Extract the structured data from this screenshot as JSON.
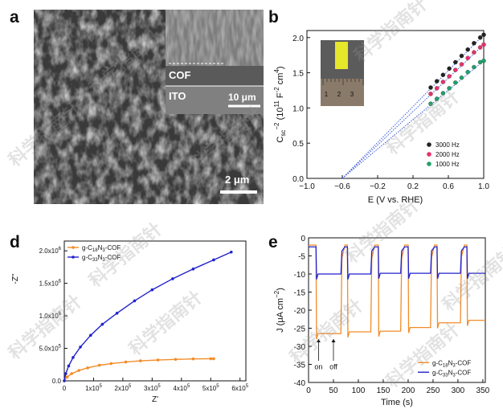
{
  "panels": {
    "a": {
      "letter": "a",
      "inset_label_cof": "COF",
      "inset_label_ito": "ITO",
      "inset_scale": "10 μm",
      "main_scale": "2 μm"
    },
    "b": {
      "letter": "b"
    },
    "d": {
      "letter": "d"
    },
    "e": {
      "letter": "e"
    }
  },
  "watermark_text": "科学指南针",
  "colors": {
    "orange": "#f28c28",
    "blue": "#2222cc",
    "black_dot": "#222222",
    "red_dot": "#e8316a",
    "green_dot": "#22a06b",
    "dotted_line": "#2a4bd7"
  },
  "chart_data": [
    {
      "panel": "b",
      "type": "scatter",
      "xlabel": "E (V vs. RHE)",
      "ylabel_main": "C",
      "ylabel_sub": "sc",
      "ylabel_sup": "−2",
      "ylabel_rest": " (10",
      "ylabel_sup2": "11",
      "ylabel_unit": " F",
      "ylabel_sup3": "-2",
      "ylabel_unit2": " cm",
      "ylabel_sup4": "4",
      "ylabel_end": ")",
      "xlim": [
        -1.0,
        1.0
      ],
      "ylim": [
        0.0,
        2.1
      ],
      "xticks": [
        -1.0,
        -0.6,
        -0.2,
        0.2,
        0.6,
        1.0
      ],
      "xtick_labels": [
        "−1.0",
        "−0.6",
        "−0.2",
        "0.2",
        "0.6",
        "1.0"
      ],
      "yticks": [
        0.0,
        0.5,
        1.0,
        1.5,
        2.0
      ],
      "ytick_labels": [
        "0.0",
        "0.5",
        "1.0",
        "1.5",
        "2.0"
      ],
      "intercept_x": -0.6,
      "legend_position": "bottom-right",
      "series": [
        {
          "name": "3000 Hz",
          "color": "#222222",
          "x": [
            0.4,
            0.47,
            0.54,
            0.61,
            0.68,
            0.75,
            0.82,
            0.89,
            0.96,
            1.0
          ],
          "y": [
            1.29,
            1.38,
            1.47,
            1.56,
            1.65,
            1.74,
            1.83,
            1.92,
            2.0,
            2.04
          ]
        },
        {
          "name": "2000 Hz",
          "color": "#e8316a",
          "x": [
            0.4,
            0.47,
            0.54,
            0.61,
            0.68,
            0.75,
            0.82,
            0.89,
            0.96,
            1.0
          ],
          "y": [
            1.2,
            1.28,
            1.37,
            1.45,
            1.54,
            1.62,
            1.71,
            1.79,
            1.86,
            1.9
          ]
        },
        {
          "name": "1000 Hz",
          "color": "#22a06b",
          "x": [
            0.4,
            0.47,
            0.54,
            0.61,
            0.68,
            0.75,
            0.82,
            0.89,
            0.96,
            1.0
          ],
          "y": [
            1.06,
            1.13,
            1.21,
            1.28,
            1.36,
            1.43,
            1.51,
            1.58,
            1.65,
            1.67
          ]
        }
      ],
      "inset_ruler_labels": [
        "1",
        "2",
        "3"
      ]
    },
    {
      "panel": "d",
      "type": "line",
      "xlabel": "Z'",
      "ylabel": "-Z''",
      "xlim": [
        0,
        620000
      ],
      "ylim": [
        0,
        2150000
      ],
      "xtick_labels": [
        {
          "v": 0,
          "base": "0"
        },
        {
          "v": 100000,
          "base": "1x10",
          "exp": "5"
        },
        {
          "v": 200000,
          "base": "2x10",
          "exp": "5"
        },
        {
          "v": 300000,
          "base": "3x10",
          "exp": "5"
        },
        {
          "v": 400000,
          "base": "4x10",
          "exp": "5"
        },
        {
          "v": 500000,
          "base": "5x10",
          "exp": "5"
        },
        {
          "v": 600000,
          "base": "6x10",
          "exp": "5"
        }
      ],
      "ytick_labels": [
        {
          "v": 0,
          "base": "0.0"
        },
        {
          "v": 500000,
          "base": "5.0x10",
          "exp": "5"
        },
        {
          "v": 1000000,
          "base": "1.0x10",
          "exp": "6"
        },
        {
          "v": 1500000,
          "base": "1.5x10",
          "exp": "6"
        },
        {
          "v": 2000000,
          "base": "2.0x10",
          "exp": "6"
        }
      ],
      "legend_position": "top-left",
      "series": [
        {
          "name_base": "g-C",
          "name_sub1": "18",
          "name_mid": "N",
          "name_sub2": "3",
          "name_end": "-COF",
          "color": "#f28c28",
          "x": [
            0,
            10000,
            25000,
            50000,
            80000,
            120000,
            160000,
            210000,
            260000,
            320000,
            380000,
            440000,
            500000,
            510000
          ],
          "y": [
            0,
            60000,
            110000,
            160000,
            200000,
            240000,
            265000,
            290000,
            308000,
            320000,
            330000,
            338000,
            340000,
            340000
          ]
        },
        {
          "name_base": "g-C",
          "name_sub1": "33",
          "name_mid": "N",
          "name_sub2": "3",
          "name_end": "-COF",
          "color": "#2222cc",
          "x": [
            0,
            5000,
            15000,
            30000,
            55000,
            90000,
            130000,
            180000,
            240000,
            300000,
            370000,
            440000,
            510000,
            570000
          ],
          "y": [
            0,
            110000,
            230000,
            360000,
            520000,
            700000,
            870000,
            1040000,
            1230000,
            1400000,
            1570000,
            1720000,
            1860000,
            1980000
          ]
        }
      ]
    },
    {
      "panel": "e",
      "type": "line",
      "xlabel": "Time (s)",
      "ylabel_main": "J (μA cm",
      "ylabel_sup": "−2",
      "ylabel_end": ")",
      "xlim": [
        0,
        355
      ],
      "ylim": [
        -40,
        0
      ],
      "xticks": [
        0,
        50,
        100,
        150,
        200,
        250,
        300,
        350
      ],
      "xtick_labels": [
        "0",
        "50",
        "100",
        "150",
        "200",
        "250",
        "300",
        "350"
      ],
      "yticks": [
        0,
        -5,
        -10,
        -15,
        -20,
        -25,
        -30,
        -35,
        -40
      ],
      "ytick_labels": [
        "0",
        "-5",
        "-10",
        "-15",
        "-20",
        "-25",
        "-30",
        "-35",
        "-40"
      ],
      "annotations": [
        {
          "text": "on",
          "x": 20
        },
        {
          "text": "off",
          "x": 50
        }
      ],
      "legend_position": "bottom-right",
      "series": [
        {
          "name_base": "g-C",
          "name_sub1": "18",
          "name_mid": "N",
          "name_sub2": "3",
          "name_end": "-COF",
          "color": "#f28c28",
          "on_times": [
            15,
            78,
            140,
            200,
            258,
            318
          ],
          "off_times": [
            65,
            125,
            185,
            245,
            305
          ],
          "plateau": [
            -26.5,
            -26,
            -25.8,
            -24.8,
            -23.5,
            -22.8
          ],
          "baseline": -2
        },
        {
          "name_base": "g-C",
          "name_sub1": "33",
          "name_mid": "N",
          "name_sub2": "3",
          "name_end": "-COF",
          "color": "#2222cc",
          "on_times": [
            15,
            78,
            140,
            200,
            258,
            318
          ],
          "off_times": [
            65,
            125,
            185,
            245,
            305
          ],
          "plateau": [
            -10,
            -10,
            -9.8,
            -9.8,
            -9.8,
            -9.8
          ],
          "baseline": -2.5
        }
      ]
    }
  ]
}
